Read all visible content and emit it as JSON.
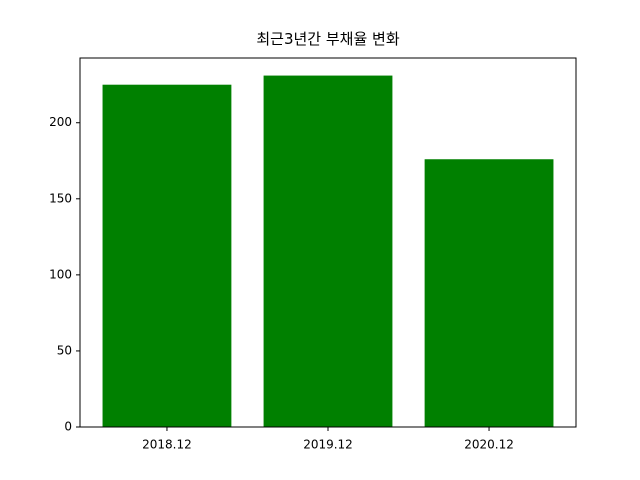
{
  "chart_data": {
    "type": "bar",
    "title": "최근3년간 부채율 변화",
    "categories": [
      "2018.12",
      "2019.12",
      "2020.12"
    ],
    "values": [
      225,
      231,
      176
    ],
    "color": "#008000",
    "ylim": [
      0,
      242.55
    ],
    "yticks": [
      0,
      50,
      100,
      150,
      200
    ]
  }
}
